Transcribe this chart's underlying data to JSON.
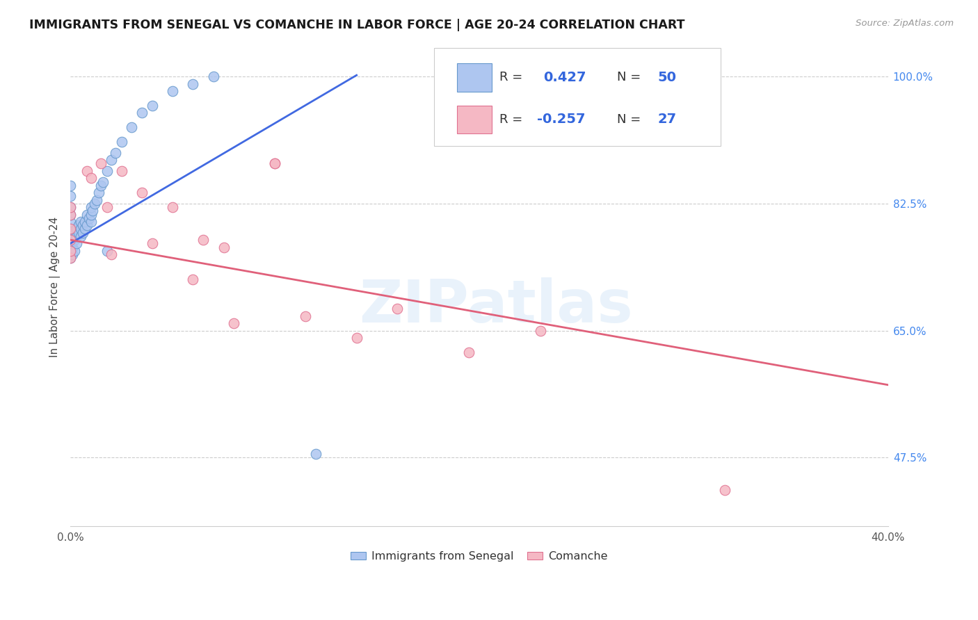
{
  "title": "IMMIGRANTS FROM SENEGAL VS COMANCHE IN LABOR FORCE | AGE 20-24 CORRELATION CHART",
  "source": "Source: ZipAtlas.com",
  "ylabel": "In Labor Force | Age 20-24",
  "watermark": "ZIPatlas",
  "senegal_R": 0.427,
  "senegal_N": 50,
  "comanche_R": -0.257,
  "comanche_N": 27,
  "x_min": 0.0,
  "x_max": 0.4,
  "y_min": 0.38,
  "y_max": 1.04,
  "y_tick_pos": [
    0.475,
    0.65,
    0.825,
    1.0
  ],
  "y_tick_labels": [
    "47.5%",
    "65.0%",
    "82.5%",
    "100.0%"
  ],
  "senegal_color": "#aec6f0",
  "senegal_edge": "#6699cc",
  "comanche_color": "#f5b8c4",
  "comanche_edge": "#e07090",
  "trend_senegal_color": "#4169e1",
  "trend_comanche_color": "#e0607a",
  "senegal_x": [
    0.0,
    0.0,
    0.0,
    0.0,
    0.0,
    0.0,
    0.0,
    0.0,
    0.0,
    0.0,
    0.001,
    0.001,
    0.002,
    0.002,
    0.003,
    0.003,
    0.003,
    0.004,
    0.004,
    0.005,
    0.005,
    0.005,
    0.006,
    0.006,
    0.007,
    0.007,
    0.008,
    0.008,
    0.009,
    0.01,
    0.01,
    0.01,
    0.011,
    0.012,
    0.013,
    0.014,
    0.015,
    0.016,
    0.018,
    0.02,
    0.022,
    0.025,
    0.03,
    0.035,
    0.04,
    0.05,
    0.06,
    0.07,
    0.12,
    0.018
  ],
  "senegal_y": [
    0.75,
    0.76,
    0.775,
    0.78,
    0.79,
    0.8,
    0.81,
    0.82,
    0.835,
    0.85,
    0.755,
    0.765,
    0.76,
    0.775,
    0.77,
    0.78,
    0.79,
    0.785,
    0.795,
    0.78,
    0.79,
    0.8,
    0.785,
    0.795,
    0.79,
    0.8,
    0.795,
    0.81,
    0.805,
    0.8,
    0.81,
    0.82,
    0.815,
    0.825,
    0.83,
    0.84,
    0.85,
    0.855,
    0.87,
    0.885,
    0.895,
    0.91,
    0.93,
    0.95,
    0.96,
    0.98,
    0.99,
    1.0,
    0.48,
    0.76
  ],
  "comanche_x": [
    0.0,
    0.0,
    0.0,
    0.0,
    0.0,
    0.0,
    0.008,
    0.01,
    0.015,
    0.018,
    0.02,
    0.025,
    0.035,
    0.04,
    0.05,
    0.06,
    0.065,
    0.075,
    0.08,
    0.1,
    0.1,
    0.115,
    0.14,
    0.16,
    0.195,
    0.23,
    0.32
  ],
  "comanche_y": [
    0.75,
    0.76,
    0.775,
    0.79,
    0.81,
    0.82,
    0.87,
    0.86,
    0.88,
    0.82,
    0.755,
    0.87,
    0.84,
    0.77,
    0.82,
    0.72,
    0.775,
    0.765,
    0.66,
    0.88,
    0.88,
    0.67,
    0.64,
    0.68,
    0.62,
    0.65,
    0.43
  ],
  "senegal_trend_x0": 0.0,
  "senegal_trend_x1": 0.14,
  "senegal_trend_y0": 0.77,
  "senegal_trend_y1": 1.002,
  "comanche_trend_x0": 0.0,
  "comanche_trend_x1": 0.4,
  "comanche_trend_y0": 0.775,
  "comanche_trend_y1": 0.575
}
